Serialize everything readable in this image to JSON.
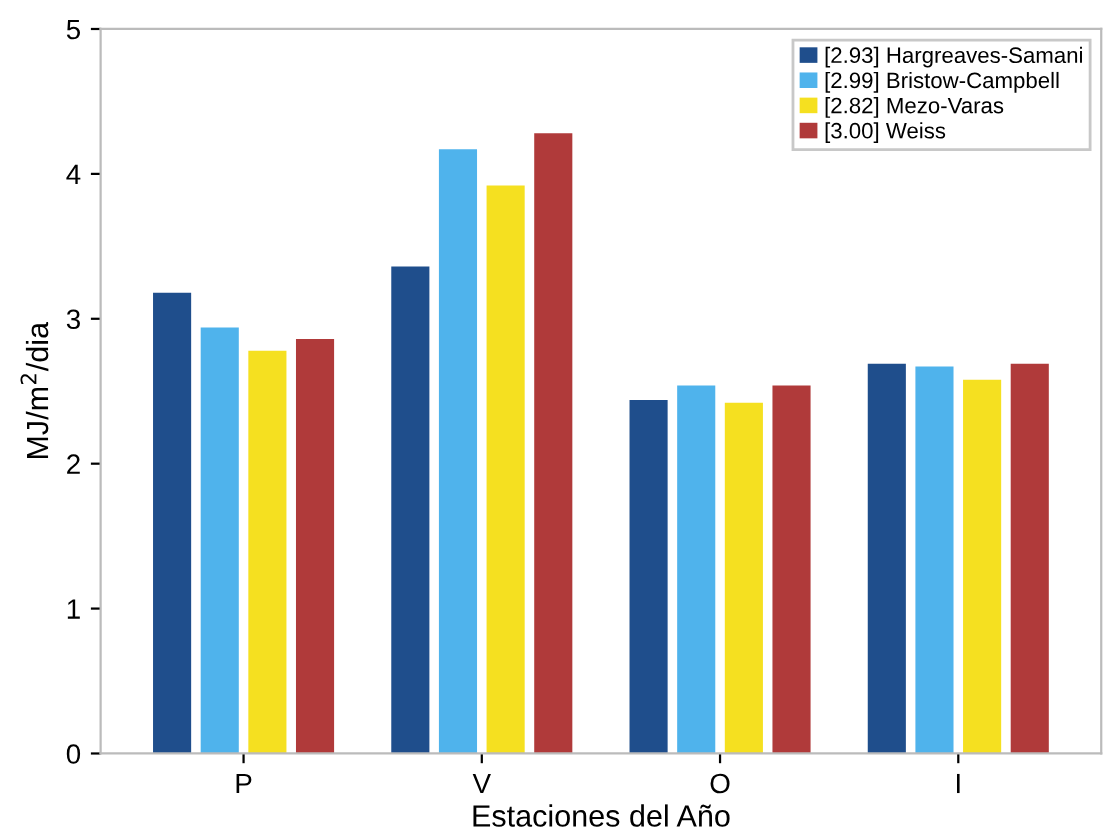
{
  "chart_data": {
    "type": "bar",
    "xlabel": "Estaciones del Año",
    "ylabel": "MJ/m$^{2}$/dia",
    "categories": [
      "P",
      "V",
      "O",
      "I"
    ],
    "series": [
      {
        "name": "[2.93] Hargreaves-Samani",
        "color": "#1f4e8c",
        "values": [
          3.18,
          3.36,
          2.44,
          2.69
        ]
      },
      {
        "name": "[2.99] Bristow-Campbell",
        "color": "#4fb3ec",
        "values": [
          2.94,
          4.17,
          2.54,
          2.67
        ]
      },
      {
        "name": "[2.82] Mezo-Varas",
        "color": "#f5e020",
        "values": [
          2.78,
          3.92,
          2.42,
          2.58
        ]
      },
      {
        "name": "[3.00] Weiss",
        "color": "#b03a3a",
        "values": [
          2.86,
          4.28,
          2.54,
          2.69
        ]
      }
    ],
    "ylim": [
      0,
      5
    ],
    "yticks": [
      0,
      1,
      2,
      3,
      4,
      5
    ],
    "grid": false,
    "legend": "top right"
  }
}
